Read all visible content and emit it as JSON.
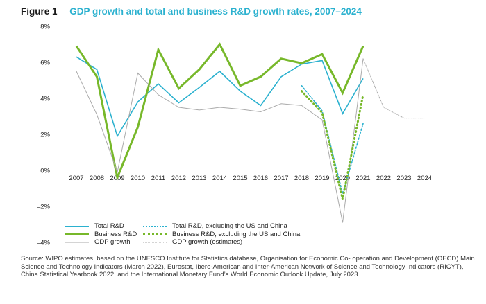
{
  "figure": {
    "label": "Figure 1",
    "title": "GDP growth and total and business R&D growth rates, 2007–2024"
  },
  "chart_data": {
    "type": "line",
    "title": "GDP growth and total and business R&D growth rates, 2007–2024",
    "xlabel": "",
    "ylabel": "",
    "x": [
      "2007",
      "2008",
      "2009",
      "2010",
      "2011",
      "2012",
      "2013",
      "2014",
      "2015",
      "2016",
      "2017",
      "2018",
      "2019",
      "2020",
      "2021",
      "2022",
      "2023",
      "2024"
    ],
    "ylim": [
      -4,
      8
    ],
    "yticks": [
      8,
      6,
      4,
      2,
      0,
      -2,
      -4
    ],
    "ytick_labels": [
      "8%",
      "6%",
      "4%",
      "2%",
      "0%",
      "–2%",
      "–4%"
    ],
    "grid": false,
    "colors": {
      "total": "#2bb1cf",
      "business": "#77b82a",
      "gdp": "#aaaaaa"
    },
    "series": [
      {
        "name": "Total R&D",
        "style": "solid",
        "color_key": "total",
        "points": [
          [
            2007,
            6.3
          ],
          [
            2008,
            5.6
          ],
          [
            2009,
            1.9
          ],
          [
            2010,
            3.8
          ],
          [
            2011,
            4.8
          ],
          [
            2012,
            3.75
          ],
          [
            2013,
            4.6
          ],
          [
            2014,
            5.5
          ],
          [
            2015,
            4.4
          ],
          [
            2016,
            3.6
          ],
          [
            2017,
            5.2
          ],
          [
            2018,
            5.9
          ],
          [
            2019,
            6.1
          ],
          [
            2020,
            3.15
          ],
          [
            2021,
            5.1
          ]
        ]
      },
      {
        "name": "Business R&D",
        "style": "solid",
        "color_key": "business",
        "points": [
          [
            2007,
            6.9
          ],
          [
            2008,
            5.2
          ],
          [
            2009,
            -0.4
          ],
          [
            2010,
            2.4
          ],
          [
            2011,
            6.7
          ],
          [
            2012,
            4.55
          ],
          [
            2013,
            5.6
          ],
          [
            2014,
            7.0
          ],
          [
            2015,
            4.7
          ],
          [
            2016,
            5.2
          ],
          [
            2017,
            6.2
          ],
          [
            2018,
            5.95
          ],
          [
            2019,
            6.45
          ],
          [
            2020,
            4.3
          ],
          [
            2021,
            6.9
          ]
        ]
      },
      {
        "name": "GDP growth",
        "style": "solid",
        "color_key": "gdp",
        "points": [
          [
            2007,
            5.5
          ],
          [
            2008,
            3.1
          ],
          [
            2009,
            -0.1
          ],
          [
            2010,
            5.4
          ],
          [
            2011,
            4.2
          ],
          [
            2012,
            3.5
          ],
          [
            2013,
            3.35
          ],
          [
            2014,
            3.5
          ],
          [
            2015,
            3.4
          ],
          [
            2016,
            3.25
          ],
          [
            2017,
            3.7
          ],
          [
            2018,
            3.6
          ],
          [
            2019,
            2.8
          ],
          [
            2020,
            -2.9
          ],
          [
            2021,
            6.2
          ]
        ]
      },
      {
        "name": "Total R&D, excluding the US and China",
        "style": "dotted",
        "color_key": "total",
        "points": [
          [
            2018,
            4.7
          ],
          [
            2019,
            3.3
          ],
          [
            2020,
            -1.3
          ],
          [
            2021,
            2.6
          ]
        ]
      },
      {
        "name": "Business R&D, excluding the US and China",
        "style": "dotted",
        "color_key": "business",
        "points": [
          [
            2018,
            4.4
          ],
          [
            2019,
            3.2
          ],
          [
            2020,
            -1.6
          ],
          [
            2021,
            4.2
          ]
        ]
      },
      {
        "name": "GDP growth (estimates)",
        "style": "dotted",
        "color_key": "gdp",
        "points": [
          [
            2021,
            6.2
          ],
          [
            2022,
            3.5
          ],
          [
            2023,
            2.9
          ],
          [
            2024,
            2.9
          ]
        ]
      }
    ],
    "legend_position": "bottom-left"
  },
  "legend": {
    "items": [
      {
        "label": "Total R&D"
      },
      {
        "label": "Business R&D"
      },
      {
        "label": "GDP growth"
      },
      {
        "label": "Total R&D, excluding the US and China"
      },
      {
        "label": "Business R&D, excluding the US and China"
      },
      {
        "label": "GDP growth (estimates)"
      }
    ]
  },
  "source": {
    "text": "Source: WIPO estimates, based on the UNESCO Institute for Statistics database, Organisation for Economic Co- operation and Development (OECD) Main Science and Technology Indicators (March 2022), Eurostat, Ibero-American and Inter-American Network of Science and Technology Indicators (RICYT), China Statistical Yearbook 2022, and the International Monetary Fund’s World Economic Outlook Update, July 2023."
  }
}
